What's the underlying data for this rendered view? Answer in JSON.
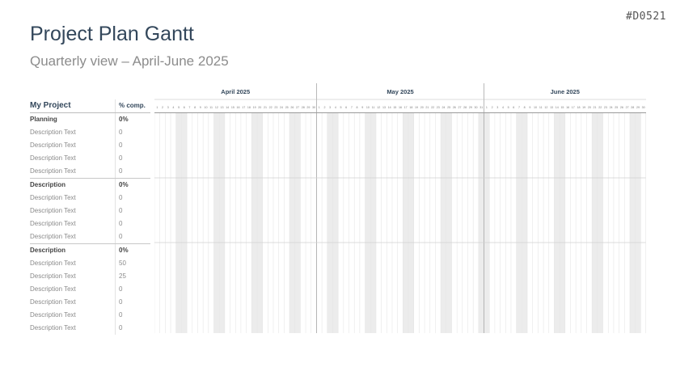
{
  "slide_id": "#D0521",
  "title": "Project Plan Gantt",
  "subtitle": "Quarterly view – April-June 2025",
  "table": {
    "project_label": "My Project",
    "completion_header": "% comp.",
    "rows": [
      {
        "label": "Planning",
        "value": "0%",
        "group": true
      },
      {
        "label": "Description Text",
        "value": "0"
      },
      {
        "label": "Description Text",
        "value": "0"
      },
      {
        "label": "Description Text",
        "value": "0"
      },
      {
        "label": "Description Text",
        "value": "0"
      },
      {
        "label": "Description",
        "value": "0%",
        "group": true
      },
      {
        "label": "Description Text",
        "value": "0"
      },
      {
        "label": "Description Text",
        "value": "0"
      },
      {
        "label": "Description Text",
        "value": "0"
      },
      {
        "label": "Description Text",
        "value": "0"
      },
      {
        "label": "Description",
        "value": "0%",
        "group": true
      },
      {
        "label": "Description Text",
        "value": "50"
      },
      {
        "label": "Description Text",
        "value": "25"
      },
      {
        "label": "Description Text",
        "value": "0"
      },
      {
        "label": "Description Text",
        "value": "0"
      },
      {
        "label": "Description Text",
        "value": "0"
      },
      {
        "label": "Description Text",
        "value": "0"
      }
    ]
  },
  "months": [
    {
      "label": "April 2025",
      "days": 30,
      "weekend_days": [
        5,
        6,
        12,
        13,
        19,
        20,
        26,
        27
      ]
    },
    {
      "label": "May 2025",
      "days": 31,
      "weekend_days": [
        3,
        4,
        10,
        11,
        17,
        18,
        24,
        25,
        31
      ]
    },
    {
      "label": "June 2025",
      "days": 30,
      "weekend_days": [
        1,
        7,
        8,
        14,
        15,
        21,
        22,
        28,
        29
      ]
    }
  ],
  "colors": {
    "weekend_shade": "#ececec",
    "grid_line": "#e6e6e6",
    "month_line": "#a8a8a8",
    "header_text": "#33475b",
    "day_text": "#7a7a7a"
  }
}
